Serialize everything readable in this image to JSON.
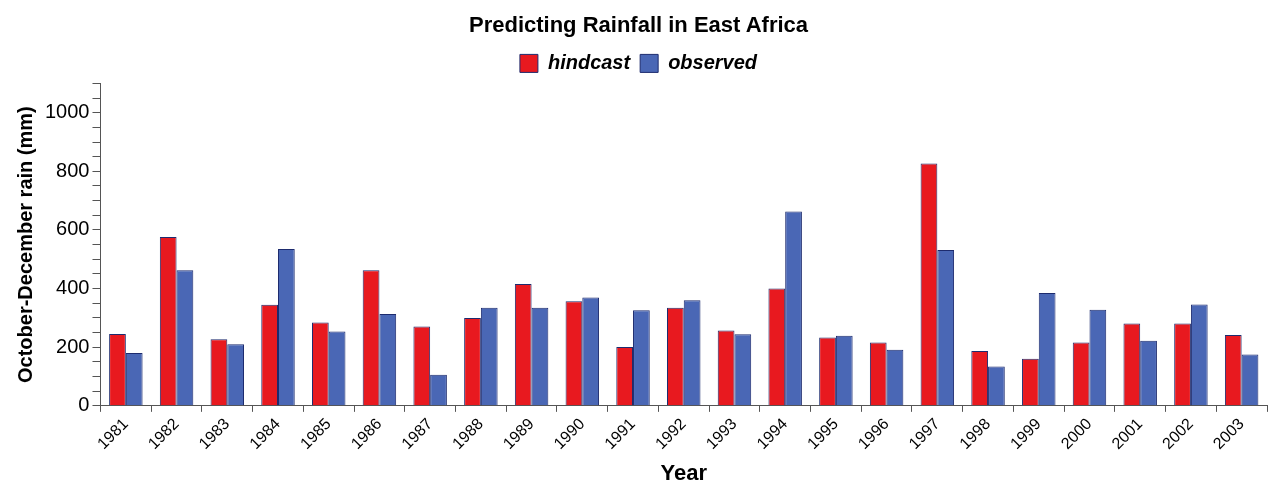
{
  "chart_data": {
    "type": "bar",
    "title": "Predicting Rainfall in East Africa",
    "xlabel": "Year",
    "ylabel": "October-December rain (mm)",
    "categories": [
      "1981",
      "1982",
      "1983",
      "1984",
      "1985",
      "1986",
      "1987",
      "1988",
      "1989",
      "1990",
      "1991",
      "1992",
      "1993",
      "1994",
      "1995",
      "1996",
      "1997",
      "1998",
      "1999",
      "2000",
      "2001",
      "2002",
      "2003"
    ],
    "series": [
      {
        "name": "hindcast",
        "color": "#e8191f",
        "values": [
          245,
          576,
          227,
          345,
          284,
          463,
          271,
          300,
          416,
          357,
          201,
          335,
          257,
          400,
          233,
          216,
          827,
          187,
          161,
          216,
          281,
          281,
          242
        ]
      },
      {
        "name": "observed",
        "color": "#4a67b5",
        "values": [
          180,
          463,
          210,
          535,
          254,
          313,
          106,
          335,
          335,
          370,
          326,
          360,
          244,
          663,
          239,
          191,
          532,
          134,
          385,
          328,
          222,
          346,
          175
        ]
      }
    ],
    "ylim": [
      0,
      1100
    ],
    "yticks": [
      0,
      {
        "value": 50,
        "label": null
      },
      200,
      {
        "value": 100,
        "label": null
      },
      {
        "value": 150,
        "label": null
      },
      {
        "value": 250,
        "label": null
      },
      {
        "value": 300,
        "label": null
      },
      {
        "value": 350,
        "label": null
      },
      400,
      {
        "value": 450,
        "label": null
      },
      {
        "value": 500,
        "label": null
      },
      {
        "value": 550,
        "label": null
      },
      600,
      {
        "value": 650,
        "label": null
      },
      {
        "value": 700,
        "label": null
      },
      {
        "value": 750,
        "label": null
      },
      800,
      {
        "value": 850,
        "label": null
      },
      {
        "value": 900,
        "label": null
      },
      {
        "value": 950,
        "label": null
      },
      1000,
      {
        "value": 1050,
        "label": null
      },
      {
        "value": 1100,
        "label": null
      }
    ],
    "grid": false,
    "legend": "top"
  }
}
